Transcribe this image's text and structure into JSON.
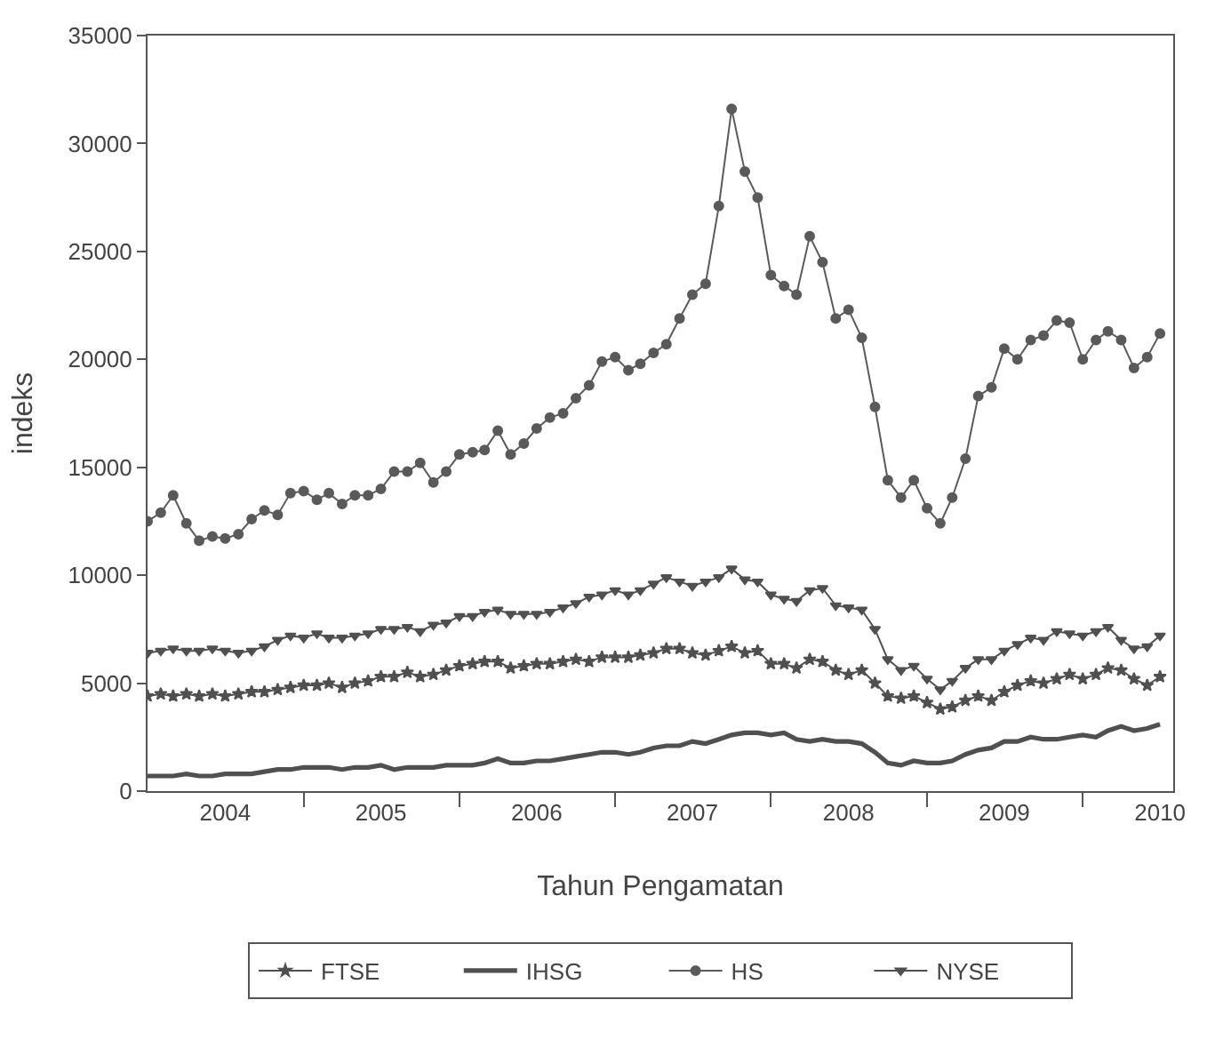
{
  "chart_data": {
    "type": "line",
    "xlabel": "Tahun Pengamatan",
    "ylabel": "indeks",
    "x": [
      "2004-01",
      "2004-02",
      "2004-03",
      "2004-04",
      "2004-05",
      "2004-06",
      "2004-07",
      "2004-08",
      "2004-09",
      "2004-10",
      "2004-11",
      "2004-12",
      "2005-01",
      "2005-02",
      "2005-03",
      "2005-04",
      "2005-05",
      "2005-06",
      "2005-07",
      "2005-08",
      "2005-09",
      "2005-10",
      "2005-11",
      "2005-12",
      "2006-01",
      "2006-02",
      "2006-03",
      "2006-04",
      "2006-05",
      "2006-06",
      "2006-07",
      "2006-08",
      "2006-09",
      "2006-10",
      "2006-11",
      "2006-12",
      "2007-01",
      "2007-02",
      "2007-03",
      "2007-04",
      "2007-05",
      "2007-06",
      "2007-07",
      "2007-08",
      "2007-09",
      "2007-10",
      "2007-11",
      "2007-12",
      "2008-01",
      "2008-02",
      "2008-03",
      "2008-04",
      "2008-05",
      "2008-06",
      "2008-07",
      "2008-08",
      "2008-09",
      "2008-10",
      "2008-11",
      "2008-12",
      "2009-01",
      "2009-02",
      "2009-03",
      "2009-04",
      "2009-05",
      "2009-06",
      "2009-07",
      "2009-08",
      "2009-09",
      "2009-10",
      "2009-11",
      "2009-12",
      "2010-01",
      "2010-02",
      "2010-03",
      "2010-04",
      "2010-05",
      "2010-06",
      "2010-07"
    ],
    "series": [
      {
        "name": "FTSE",
        "color": "#505050",
        "marker": "star",
        "values": [
          4400,
          4500,
          4400,
          4500,
          4400,
          4500,
          4400,
          4500,
          4600,
          4600,
          4700,
          4800,
          4900,
          4900,
          5000,
          4800,
          5000,
          5100,
          5300,
          5300,
          5500,
          5300,
          5400,
          5600,
          5800,
          5900,
          6000,
          6000,
          5700,
          5800,
          5900,
          5900,
          6000,
          6100,
          6000,
          6200,
          6200,
          6200,
          6300,
          6400,
          6600,
          6600,
          6400,
          6300,
          6500,
          6700,
          6400,
          6500,
          5900,
          5900,
          5700,
          6100,
          6000,
          5600,
          5400,
          5600,
          5000,
          4400,
          4300,
          4400,
          4100,
          3800,
          3900,
          4200,
          4400,
          4200,
          4600,
          4900,
          5100,
          5000,
          5200,
          5400,
          5200,
          5400,
          5700,
          5600,
          5200,
          4900,
          5300
        ]
      },
      {
        "name": "IHSG",
        "color": "#505050",
        "marker": "none",
        "values": [
          700,
          700,
          700,
          800,
          700,
          700,
          800,
          800,
          800,
          900,
          1000,
          1000,
          1100,
          1100,
          1100,
          1000,
          1100,
          1100,
          1200,
          1000,
          1100,
          1100,
          1100,
          1200,
          1200,
          1200,
          1300,
          1500,
          1300,
          1300,
          1400,
          1400,
          1500,
          1600,
          1700,
          1800,
          1800,
          1700,
          1800,
          2000,
          2100,
          2100,
          2300,
          2200,
          2400,
          2600,
          2700,
          2700,
          2600,
          2700,
          2400,
          2300,
          2400,
          2300,
          2300,
          2200,
          1800,
          1300,
          1200,
          1400,
          1300,
          1300,
          1400,
          1700,
          1900,
          2000,
          2300,
          2300,
          2500,
          2400,
          2400,
          2500,
          2600,
          2500,
          2800,
          3000,
          2800,
          2900,
          3100
        ]
      },
      {
        "name": "HS",
        "color": "#5a5a5a",
        "marker": "circle",
        "values": [
          12500,
          12900,
          13700,
          12400,
          11600,
          11800,
          11700,
          11900,
          12600,
          13000,
          12800,
          13800,
          13900,
          13500,
          13800,
          13300,
          13700,
          13700,
          14000,
          14800,
          14800,
          15200,
          14300,
          14800,
          15600,
          15700,
          15800,
          16700,
          15600,
          16100,
          16800,
          17300,
          17500,
          18200,
          18800,
          19900,
          20100,
          19500,
          19800,
          20300,
          20700,
          21900,
          23000,
          23500,
          27100,
          31600,
          28700,
          27500,
          23900,
          23400,
          23000,
          25700,
          24500,
          21900,
          22300,
          21000,
          17800,
          14400,
          13600,
          14400,
          13100,
          12400,
          13600,
          15400,
          18300,
          18700,
          20500,
          20000,
          20900,
          21100,
          21800,
          21700,
          20000,
          20900,
          21300,
          20900,
          19600,
          20100,
          21200
        ]
      },
      {
        "name": "NYSE",
        "color": "#505050",
        "marker": "triangle",
        "values": [
          6400,
          6500,
          6600,
          6500,
          6500,
          6600,
          6500,
          6400,
          6500,
          6700,
          7000,
          7200,
          7100,
          7300,
          7100,
          7100,
          7200,
          7300,
          7500,
          7500,
          7600,
          7400,
          7700,
          7800,
          8100,
          8100,
          8300,
          8400,
          8200,
          8200,
          8200,
          8300,
          8500,
          8700,
          9000,
          9100,
          9300,
          9100,
          9300,
          9600,
          9900,
          9700,
          9500,
          9700,
          9900,
          10300,
          9800,
          9700,
          9100,
          8900,
          8800,
          9300,
          9400,
          8600,
          8500,
          8400,
          7500,
          6100,
          5600,
          5800,
          5200,
          4700,
          5100,
          5700,
          6100,
          6100,
          6500,
          6800,
          7100,
          7000,
          7400,
          7300,
          7200,
          7400,
          7600,
          7000,
          6600,
          6700,
          7200
        ]
      }
    ],
    "xlim": [
      "2004-01-01",
      "2010-08-01"
    ],
    "xticks": [
      {
        "value": "2004-07-01",
        "label": "2004"
      },
      {
        "value": "2005-01-01",
        "label": null
      },
      {
        "value": "2005-07-01",
        "label": "2005"
      },
      {
        "value": "2006-01-01",
        "label": null
      },
      {
        "value": "2006-07-01",
        "label": "2006"
      },
      {
        "value": "2007-01-01",
        "label": null
      },
      {
        "value": "2007-07-01",
        "label": "2007"
      },
      {
        "value": "2008-01-01",
        "label": null
      },
      {
        "value": "2008-07-01",
        "label": "2008"
      },
      {
        "value": "2009-01-01",
        "label": null
      },
      {
        "value": "2009-07-01",
        "label": "2009"
      },
      {
        "value": "2010-01-01",
        "label": null
      },
      {
        "value": "2010-07-01",
        "label": "2010"
      }
    ],
    "ylim": [
      0,
      35000
    ],
    "yticks": [
      0,
      5000,
      10000,
      15000,
      20000,
      25000,
      30000,
      35000
    ],
    "grid": false,
    "legend": "bottom",
    "line_style": "solid"
  }
}
